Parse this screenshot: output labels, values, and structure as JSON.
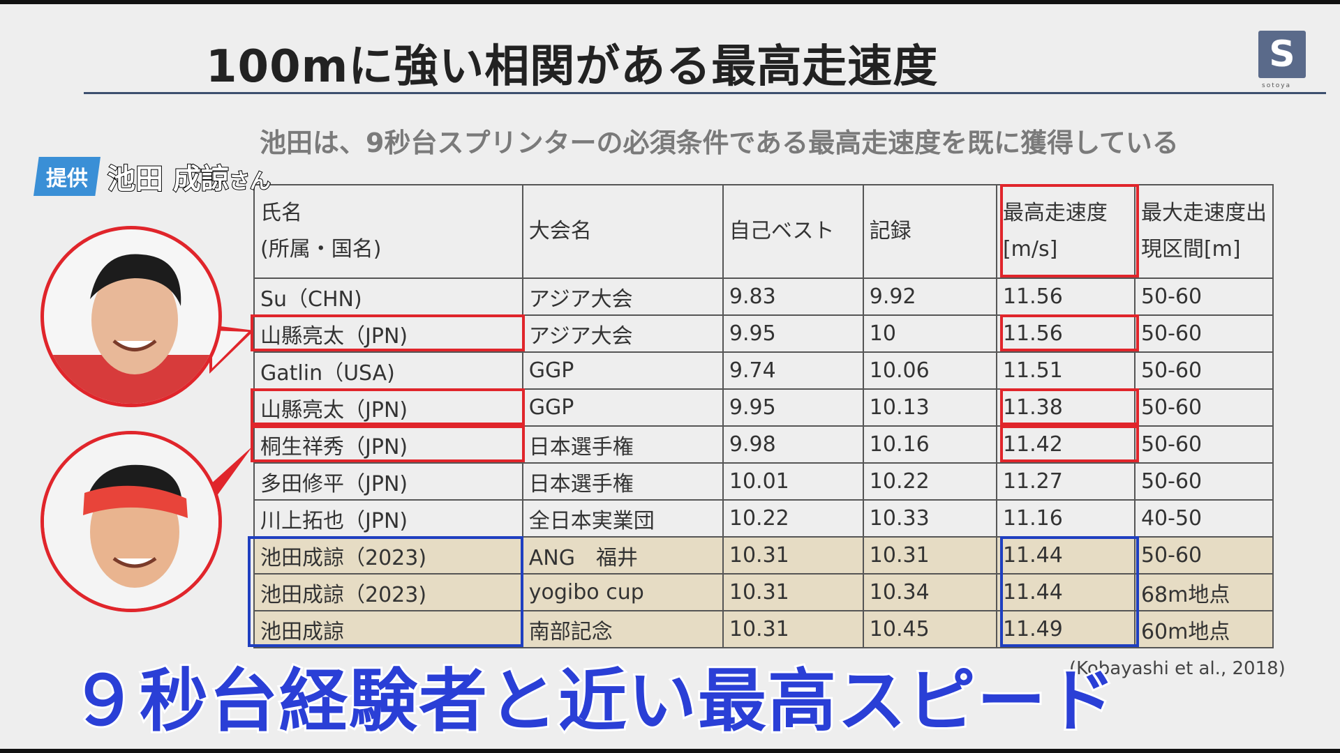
{
  "title": "100mに強い相関がある最高走速度",
  "logo_letter": "S",
  "logo_sub": "sotoya",
  "subtitle": "池田は、9秒台スプリンターの必須条件である最高走速度を既に獲得している",
  "credit": {
    "badge": "提供",
    "name": "池田 成諒",
    "suffix": "さん"
  },
  "table": {
    "headers": [
      [
        "氏名",
        "(所属・国名)"
      ],
      [
        "大会名"
      ],
      [
        "自己ベスト"
      ],
      [
        "記録"
      ],
      [
        "最高走速度",
        "[m/s]"
      ],
      [
        "最大走速度出",
        "現区間[m]"
      ]
    ],
    "rows": [
      [
        "Su（CHN)",
        "アジア大会",
        "9.83",
        "9.92",
        "11.56",
        "50-60"
      ],
      [
        "山縣亮太（JPN)",
        "アジア大会",
        "9.95",
        "10",
        "11.56",
        "50-60"
      ],
      [
        "Gatlin（USA)",
        "GGP",
        "9.74",
        "10.06",
        "11.51",
        "50-60"
      ],
      [
        "山縣亮太（JPN)",
        "GGP",
        "9.95",
        "10.13",
        "11.38",
        "50-60"
      ],
      [
        "桐生祥秀（JPN)",
        "日本選手権",
        "9.98",
        "10.16",
        "11.42",
        "50-60"
      ],
      [
        "多田修平（JPN)",
        "日本選手権",
        "10.01",
        "10.22",
        "11.27",
        "50-60"
      ],
      [
        "川上拓也（JPN)",
        "全日本実業団",
        "10.22",
        "10.33",
        "11.16",
        "40-50"
      ],
      [
        "池田成諒（2023)",
        "ANG　福井",
        "10.31",
        "10.31",
        "11.44",
        "50-60"
      ],
      [
        "池田成諒（2023)",
        "yogibo cup",
        "10.31",
        "10.34",
        "11.44",
        "68m地点"
      ],
      [
        "池田成諒",
        "南部記念",
        "10.31",
        "10.45",
        "11.49",
        "60m地点"
      ]
    ]
  },
  "citation": "(Kobayashi et al., 2018)",
  "caption": "９秒台経験者と近い最高スピード",
  "colors": {
    "highlight_red": "#e0252b",
    "highlight_blue": "#1f3fc0",
    "ikeda_row_bg": "#e6dcc4",
    "caption": "#2a3fd6"
  }
}
